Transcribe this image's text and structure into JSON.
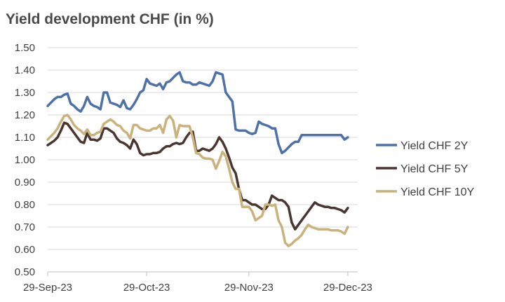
{
  "chart_data": {
    "type": "line",
    "title": "Yield development CHF (in %)",
    "xlabel": "",
    "ylabel": "",
    "ylim": [
      0.5,
      1.5
    ],
    "y_ticks": [
      "1.50",
      "1.40",
      "1.30",
      "1.20",
      "1.10",
      "1.00",
      "0.90",
      "0.80",
      "0.70",
      "0.60",
      "0.50"
    ],
    "x_ticks": [
      "29-Sep-23",
      "29-Oct-23",
      "29-Nov-23",
      "29-Dec-23"
    ],
    "x_tick_days": [
      0,
      30,
      61,
      91
    ],
    "grid": true,
    "legend": "right",
    "series": [
      {
        "name": "Yield CHF 2Y",
        "color": "#4e72a8",
        "x": [
          0,
          2,
          3,
          4,
          5,
          6,
          7,
          8,
          9,
          10,
          11,
          12,
          13,
          14,
          15,
          16,
          17,
          18,
          19,
          20,
          21,
          22,
          23,
          24,
          25,
          26,
          27,
          28,
          29,
          30,
          31,
          32,
          33,
          34,
          35,
          36,
          37,
          38,
          39,
          40,
          41,
          42,
          43,
          44,
          45,
          46,
          47,
          48,
          49,
          50,
          51,
          52,
          53,
          54,
          55,
          56,
          57,
          58,
          59,
          60,
          61,
          62,
          63,
          64,
          65,
          66,
          67,
          68,
          69,
          70,
          71,
          72,
          73,
          74,
          75,
          76,
          77,
          78,
          79,
          80,
          81,
          82,
          83,
          84,
          85,
          86,
          87,
          88,
          89,
          90,
          91
        ],
        "values": [
          1.24,
          1.27,
          1.28,
          1.28,
          1.29,
          1.295,
          1.25,
          1.24,
          1.225,
          1.215,
          1.24,
          1.28,
          1.25,
          1.24,
          1.235,
          1.225,
          1.3,
          1.3,
          1.255,
          1.25,
          1.245,
          1.235,
          1.265,
          1.23,
          1.225,
          1.245,
          1.27,
          1.3,
          1.31,
          1.36,
          1.34,
          1.335,
          1.33,
          1.34,
          1.315,
          1.345,
          1.35,
          1.365,
          1.38,
          1.39,
          1.35,
          1.345,
          1.345,
          1.335,
          1.335,
          1.345,
          1.34,
          1.335,
          1.33,
          1.35,
          1.39,
          1.385,
          1.38,
          1.3,
          1.28,
          1.26,
          1.135,
          1.13,
          1.13,
          1.13,
          1.12,
          1.115,
          1.12,
          1.17,
          1.16,
          1.155,
          1.15,
          1.14,
          1.14,
          1.07,
          1.03,
          1.04,
          1.055,
          1.07,
          1.08,
          1.08,
          1.11,
          1.11,
          1.11,
          1.11,
          1.11,
          1.11,
          1.11,
          1.11,
          1.11,
          1.11,
          1.11,
          1.11,
          1.11,
          1.09,
          1.1
        ]
      },
      {
        "name": "Yield CHF 5Y",
        "color": "#4a3630",
        "x": [
          0,
          2,
          3,
          4,
          5,
          6,
          7,
          8,
          9,
          10,
          11,
          12,
          13,
          14,
          15,
          16,
          17,
          18,
          19,
          20,
          21,
          22,
          23,
          24,
          25,
          26,
          27,
          28,
          29,
          30,
          31,
          32,
          33,
          34,
          35,
          36,
          37,
          38,
          39,
          40,
          41,
          42,
          43,
          44,
          45,
          46,
          47,
          48,
          49,
          50,
          51,
          52,
          53,
          54,
          55,
          56,
          57,
          58,
          59,
          60,
          61,
          62,
          63,
          64,
          65,
          66,
          67,
          68,
          69,
          70,
          71,
          72,
          73,
          74,
          75,
          76,
          77,
          78,
          79,
          80,
          81,
          82,
          83,
          84,
          85,
          86,
          87,
          88,
          89,
          90,
          91
        ],
        "values": [
          1.065,
          1.085,
          1.1,
          1.13,
          1.165,
          1.16,
          1.14,
          1.12,
          1.1,
          1.08,
          1.075,
          1.12,
          1.09,
          1.09,
          1.085,
          1.095,
          1.14,
          1.14,
          1.13,
          1.12,
          1.095,
          1.08,
          1.075,
          1.065,
          1.05,
          1.09,
          1.07,
          1.03,
          1.02,
          1.025,
          1.025,
          1.03,
          1.03,
          1.035,
          1.05,
          1.06,
          1.06,
          1.07,
          1.075,
          1.07,
          1.075,
          1.1,
          1.12,
          1.125,
          1.04,
          1.04,
          1.05,
          1.045,
          1.04,
          1.05,
          1.07,
          1.1,
          1.08,
          1.05,
          1.01,
          0.965,
          0.94,
          0.87,
          0.82,
          0.82,
          0.81,
          0.8,
          0.8,
          0.79,
          0.78,
          0.78,
          0.8,
          0.84,
          0.83,
          0.82,
          0.82,
          0.81,
          0.79,
          0.72,
          0.69,
          0.71,
          0.73,
          0.75,
          0.77,
          0.79,
          0.81,
          0.8,
          0.795,
          0.79,
          0.79,
          0.785,
          0.785,
          0.78,
          0.775,
          0.765,
          0.785
        ]
      },
      {
        "name": "Yield CHF 10Y",
        "color": "#c9b27c",
        "x": [
          0,
          2,
          3,
          4,
          5,
          6,
          7,
          8,
          9,
          10,
          11,
          12,
          13,
          14,
          15,
          16,
          17,
          18,
          19,
          20,
          21,
          22,
          23,
          24,
          25,
          26,
          27,
          28,
          29,
          30,
          31,
          32,
          33,
          34,
          35,
          36,
          37,
          38,
          39,
          40,
          41,
          42,
          43,
          44,
          45,
          46,
          47,
          48,
          49,
          50,
          51,
          52,
          53,
          54,
          55,
          56,
          57,
          58,
          59,
          60,
          61,
          62,
          63,
          64,
          65,
          66,
          67,
          68,
          69,
          70,
          71,
          72,
          73,
          74,
          75,
          76,
          77,
          78,
          79,
          80,
          81,
          82,
          83,
          84,
          85,
          86,
          87,
          88,
          89,
          90,
          91
        ],
        "values": [
          1.09,
          1.12,
          1.14,
          1.17,
          1.195,
          1.2,
          1.18,
          1.155,
          1.14,
          1.13,
          1.115,
          1.135,
          1.11,
          1.11,
          1.12,
          1.125,
          1.16,
          1.17,
          1.18,
          1.17,
          1.155,
          1.15,
          1.13,
          1.12,
          1.095,
          1.155,
          1.155,
          1.14,
          1.135,
          1.13,
          1.13,
          1.14,
          1.14,
          1.155,
          1.12,
          1.18,
          1.195,
          1.175,
          1.1,
          1.155,
          1.15,
          1.15,
          1.15,
          1.1,
          1.03,
          1.025,
          1.01,
          1.005,
          1.005,
          1.0,
          0.96,
          0.995,
          1.035,
          1.015,
          0.96,
          0.9,
          0.87,
          0.87,
          0.79,
          0.79,
          0.79,
          0.77,
          0.73,
          0.74,
          0.75,
          0.8,
          0.8,
          0.795,
          0.8,
          0.73,
          0.7,
          0.63,
          0.615,
          0.625,
          0.64,
          0.65,
          0.665,
          0.69,
          0.71,
          0.7,
          0.695,
          0.69,
          0.69,
          0.69,
          0.69,
          0.685,
          0.685,
          0.685,
          0.68,
          0.67,
          0.7
        ]
      }
    ]
  }
}
